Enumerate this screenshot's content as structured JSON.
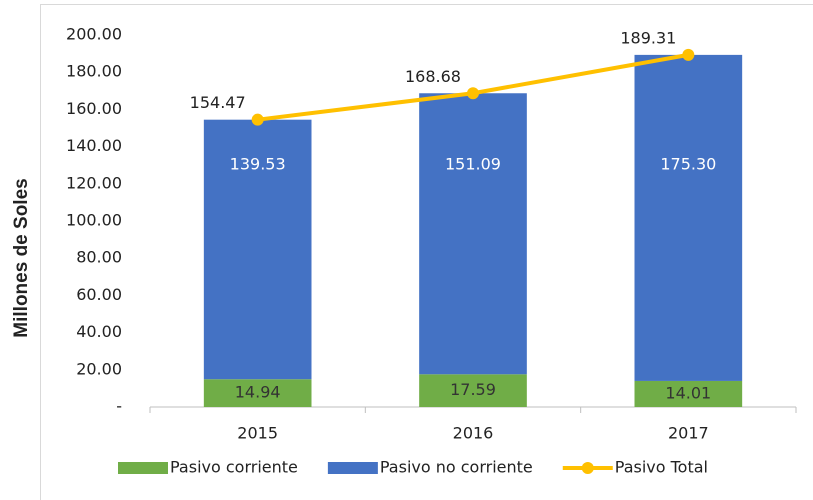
{
  "chart_data": {
    "type": "bar",
    "stacked": true,
    "y_label": "Millones de Soles",
    "categories": [
      "2015",
      "2016",
      "2017"
    ],
    "series": [
      {
        "name": "Pasivo corriente",
        "color": "#70ad47",
        "values": [
          14.94,
          17.59,
          14.01
        ]
      },
      {
        "name": "Pasivo no corriente",
        "color": "#4472c4",
        "values": [
          139.53,
          151.09,
          175.3
        ],
        "value_labels": [
          "139.53",
          "151.09",
          "175.30"
        ]
      },
      {
        "name": "Pasivo Total",
        "type": "line",
        "color": "#ffc000",
        "values": [
          154.47,
          168.68,
          189.31
        ]
      }
    ],
    "ylim": [
      0,
      200
    ],
    "yticks": [
      {
        "value": 0,
        "label": "-"
      },
      {
        "value": 20,
        "label": "20.00"
      },
      {
        "value": 40,
        "label": "40.00"
      },
      {
        "value": 60,
        "label": "60.00"
      },
      {
        "value": 80,
        "label": "80.00"
      },
      {
        "value": 100,
        "label": "100.00"
      },
      {
        "value": 120,
        "label": "120.00"
      },
      {
        "value": 140,
        "label": "140.00"
      },
      {
        "value": 160,
        "label": "160.00"
      },
      {
        "value": 180,
        "label": "180.00"
      },
      {
        "value": 200,
        "label": "200.00"
      }
    ],
    "legend": "bottom"
  }
}
